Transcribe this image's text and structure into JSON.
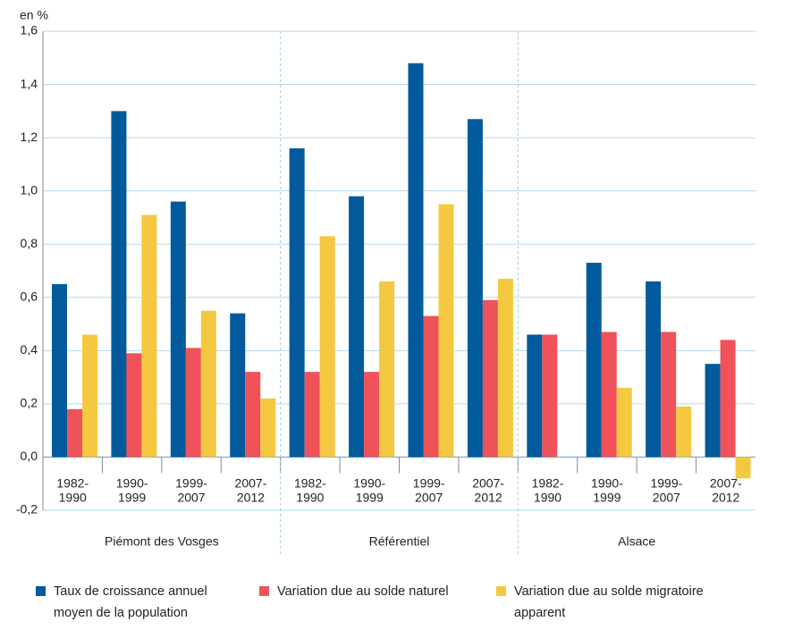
{
  "chart_data": {
    "type": "bar",
    "y_label": "en %",
    "categories": [
      [
        "1982-",
        "1990"
      ],
      [
        "1990-",
        "1999"
      ],
      [
        "1999-",
        "2007"
      ],
      [
        "2007-",
        "2012"
      ],
      [
        "1982-",
        "1990"
      ],
      [
        "1990-",
        "1999"
      ],
      [
        "1999-",
        "2007"
      ],
      [
        "2007-",
        "2012"
      ],
      [
        "1982-",
        "1990"
      ],
      [
        "1990-",
        "1999"
      ],
      [
        "1999-",
        "2007"
      ],
      [
        "2007-",
        "2012"
      ]
    ],
    "groups": [
      "Piémont des Vosges",
      "Référentiel",
      "Alsace"
    ],
    "series": [
      {
        "name": "Taux de croissance annuel moyen de la population",
        "color": "#005a9c",
        "values": [
          0.65,
          1.3,
          0.96,
          0.54,
          1.16,
          0.98,
          1.48,
          1.27,
          0.46,
          0.73,
          0.66,
          0.35
        ]
      },
      {
        "name": "Variation due au solde naturel",
        "color": "#f0525a",
        "values": [
          0.18,
          0.39,
          0.41,
          0.32,
          0.32,
          0.32,
          0.53,
          0.59,
          0.46,
          0.47,
          0.47,
          0.44
        ]
      },
      {
        "name": "Variation due au solde migratoire apparent",
        "color": "#f5c842",
        "values": [
          0.46,
          0.91,
          0.55,
          0.22,
          0.83,
          0.66,
          0.95,
          0.67,
          null,
          0.26,
          0.19,
          -0.08
        ]
      }
    ],
    "ylim": [
      -0.2,
      1.6
    ],
    "yticks": [
      {
        "value": -0.2,
        "label": "-0,2"
      },
      {
        "value": 0,
        "label": "0,0"
      },
      {
        "value": 0.2,
        "label": "0,2"
      },
      {
        "value": 0.4,
        "label": "0,4"
      },
      {
        "value": 0.6,
        "label": "0,6"
      },
      {
        "value": 0.8,
        "label": "0,8"
      },
      {
        "value": 1.0,
        "label": "1,0"
      },
      {
        "value": 1.2,
        "label": "1,2"
      },
      {
        "value": 1.4,
        "label": "1,4"
      },
      {
        "value": 1.6,
        "label": "1,6"
      }
    ],
    "grid": true,
    "legend": "bottom"
  }
}
